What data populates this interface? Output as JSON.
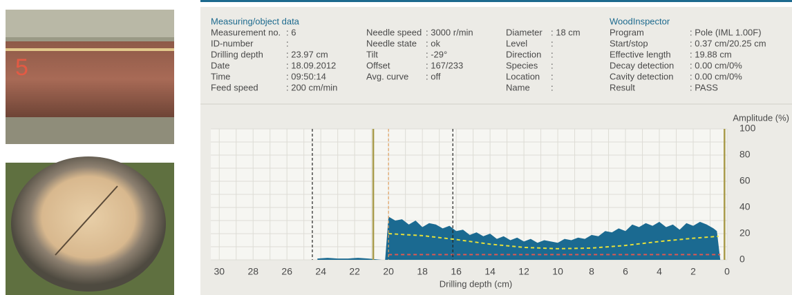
{
  "info": {
    "title": "Measuring/object data",
    "inspector_title": "WoodInspector",
    "columns": [
      [
        [
          "Measurement no.",
          ": 6"
        ],
        [
          "ID-number",
          ":"
        ],
        [
          "Drilling depth",
          ": 23.97 cm"
        ],
        [
          "Date",
          ": 18.09.2012"
        ],
        [
          "Time",
          ": 09:50:14"
        ],
        [
          "Feed speed",
          ": 200 cm/min"
        ]
      ],
      [
        [
          "Needle speed",
          ": 3000 r/min"
        ],
        [
          "Needle state",
          ": ok"
        ],
        [
          "Tilt",
          ": -29°"
        ],
        [
          "Offset",
          ": 167/233"
        ],
        [
          "Avg. curve",
          ": off"
        ]
      ],
      [
        [
          "Diameter",
          ": 18 cm"
        ],
        [
          "Level",
          ":"
        ],
        [
          "Direction",
          ":"
        ],
        [
          "Species",
          ":"
        ],
        [
          "Location",
          ":"
        ],
        [
          "Name",
          ":"
        ]
      ],
      [
        [
          "Program",
          ": Pole (IML 1.00F)"
        ],
        [
          "Start/stop",
          ": 0.37 cm/20.25 cm"
        ],
        [
          "Effective length",
          ": 19.88 cm"
        ],
        [
          "Decay detection",
          ": 0.00 cm/0%"
        ],
        [
          "Cavity detection",
          ": 0.00 cm/0%"
        ],
        [
          "Result",
          ": PASS"
        ]
      ]
    ]
  },
  "chart_data": {
    "type": "area",
    "xlabel": "Drilling depth (cm)",
    "ylabel": "Amplitude (%)",
    "xlim": [
      30.5,
      0
    ],
    "ylim": [
      0,
      100
    ],
    "xticks": [
      30,
      28,
      26,
      24,
      22,
      20,
      18,
      16,
      14,
      12,
      10,
      8,
      6,
      4,
      2,
      0
    ],
    "yticks": [
      0,
      20,
      40,
      60,
      80,
      100
    ],
    "minor_xticks": [
      29,
      27,
      25,
      23,
      21,
      19,
      17,
      15,
      13,
      11,
      9,
      7,
      5,
      3,
      1
    ],
    "minor_yticks": [
      10,
      30,
      50,
      70,
      90
    ],
    "grid": true,
    "series": [
      {
        "name": "Amplitude",
        "kind": "area",
        "color": "#1b6a91",
        "x": [
          24.2,
          23.6,
          23,
          22.4,
          21.8,
          21.2,
          20.4,
          20.2,
          20.0,
          19.6,
          19.2,
          18.8,
          18.4,
          18.0,
          17.6,
          17.2,
          16.8,
          16.4,
          16.0,
          15.6,
          15.2,
          14.8,
          14.4,
          14.0,
          13.6,
          13.2,
          12.8,
          12.4,
          12.0,
          11.6,
          11.2,
          10.8,
          10.4,
          10.0,
          9.6,
          9.2,
          8.8,
          8.4,
          8.0,
          7.6,
          7.2,
          6.8,
          6.4,
          6.0,
          5.6,
          5.2,
          4.8,
          4.4,
          4.0,
          3.6,
          3.2,
          2.8,
          2.4,
          2.0,
          1.6,
          1.2,
          0.8,
          0.6,
          0.4
        ],
        "values": [
          1,
          1.5,
          1,
          1,
          1.5,
          1,
          0,
          0,
          33,
          30,
          31,
          27,
          30,
          25,
          28,
          27,
          24,
          26,
          22,
          23,
          19,
          21,
          18,
          20,
          16,
          18,
          15,
          17,
          14,
          16,
          13,
          15,
          14,
          13,
          16,
          15,
          17,
          16,
          19,
          18,
          22,
          21,
          24,
          22,
          27,
          25,
          28,
          26,
          29,
          25,
          27,
          23,
          28,
          26,
          29,
          27,
          24,
          22,
          0
        ]
      },
      {
        "name": "Decay curve",
        "kind": "dashed",
        "color": "#e6e03a",
        "x": [
          20,
          18,
          16,
          14,
          12,
          10,
          8,
          6,
          4,
          2,
          0.5
        ],
        "values": [
          20,
          18.5,
          15.5,
          12,
          9.5,
          8.5,
          9,
          11,
          14,
          16.5,
          18
        ]
      },
      {
        "name": "Cavity curve",
        "kind": "dashed",
        "color": "#e0584f",
        "x": [
          20,
          0.4
        ],
        "values": [
          4,
          4
        ]
      }
    ],
    "reference_lines": [
      {
        "x": 24.5,
        "color": "#222222",
        "dashed": true
      },
      {
        "x": 16.2,
        "color": "#222222",
        "dashed": true
      },
      {
        "x": 20.9,
        "color": "#a89a4a",
        "dashed": false
      },
      {
        "x": 20.0,
        "color": "#e0a060",
        "dashed": true
      },
      {
        "x": 0.15,
        "color": "#a89a4a",
        "dashed": false
      }
    ]
  }
}
